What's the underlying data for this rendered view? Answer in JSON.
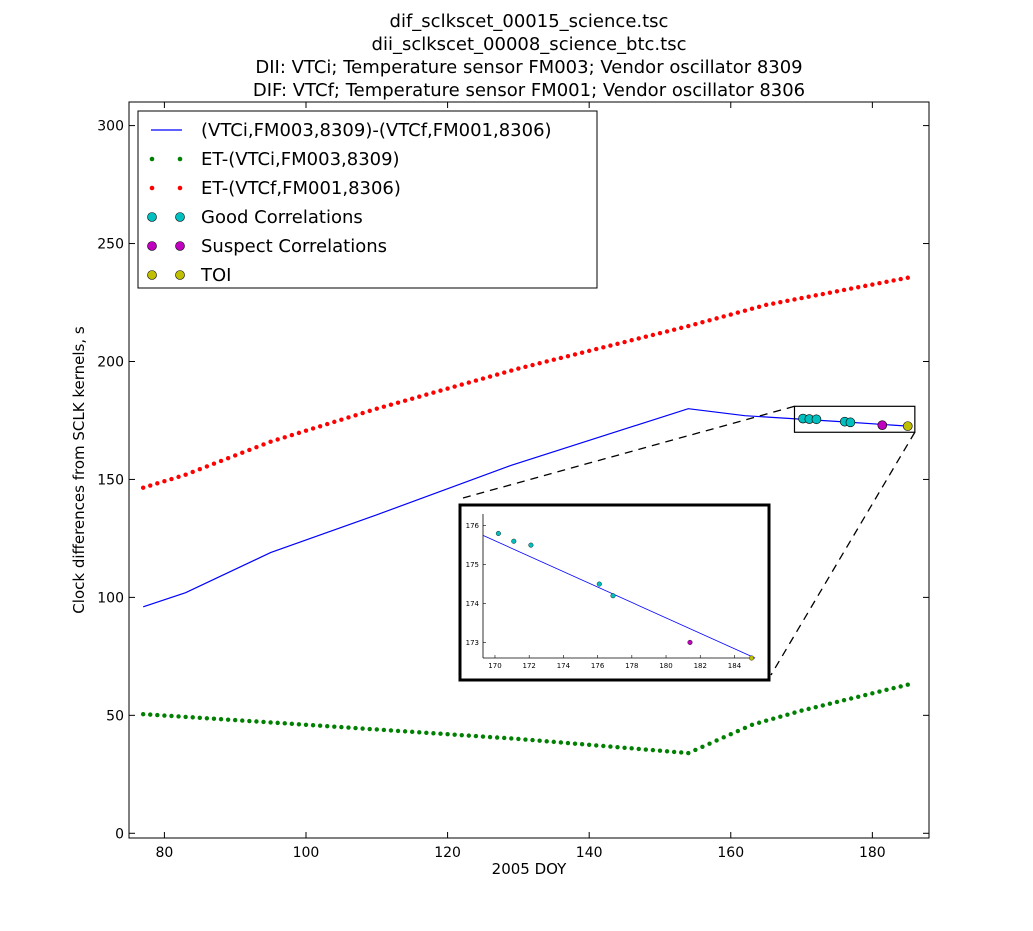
{
  "chart_data": {
    "type": "line",
    "title_lines": [
      "dif_sclkscet_00015_science.tsc",
      "dii_sclkscet_00008_science_btc.tsc",
      "DII:  VTCi; Temperature sensor FM003; Vendor oscillator 8309",
      "DIF:  VTCf; Temperature sensor FM001; Vendor oscillator 8306"
    ],
    "xlabel": "2005 DOY",
    "ylabel": "Clock differences from SCLK kernels, s",
    "xlim": [
      75,
      188
    ],
    "ylim": [
      -2,
      310
    ],
    "xticks": [
      80,
      100,
      120,
      140,
      160,
      180
    ],
    "yticks": [
      0,
      50,
      100,
      150,
      200,
      250,
      300
    ],
    "legend_position": "upper-left",
    "series": [
      {
        "name": "(VTCi,FM003,8309)-(VTCf,FM001,8306)",
        "style": "line",
        "color": "#0000ff",
        "x": [
          77,
          83,
          95,
          110,
          129,
          154,
          162,
          176,
          185
        ],
        "y": [
          96,
          102,
          119,
          135,
          156,
          180,
          177,
          174.4,
          172.6
        ]
      },
      {
        "name": "ET-(VTCi,FM003,8309)",
        "style": "dots",
        "color": "#008000",
        "x": [
          77,
          95,
          110,
          130,
          154,
          163,
          170,
          185
        ],
        "y": [
          50.5,
          47,
          44,
          40,
          34,
          46,
          52,
          63
        ]
      },
      {
        "name": "ET-(VTCf,FM001,8306)",
        "style": "dots",
        "color": "#ff0000",
        "x": [
          77,
          83,
          95,
          110,
          130,
          154,
          165,
          185
        ],
        "y": [
          146.5,
          152,
          166,
          180,
          197,
          215,
          224,
          235.5
        ]
      },
      {
        "name": "Good Correlations",
        "style": "markers",
        "color": "#00bfbf",
        "x": [
          170.2,
          171.1,
          172.1,
          176.1,
          176.9
        ],
        "y": [
          175.8,
          175.6,
          175.5,
          174.5,
          174.2
        ]
      },
      {
        "name": "Suspect Correlations",
        "style": "markers",
        "color": "#bf00bf",
        "x": [
          181.4
        ],
        "y": [
          173.0
        ]
      },
      {
        "name": "TOI",
        "style": "markers",
        "color": "#bfbf00",
        "x": [
          185.0
        ],
        "y": [
          172.6
        ]
      }
    ],
    "zoom_box": {
      "xlim": [
        169,
        186
      ],
      "ylim": [
        170,
        181
      ]
    },
    "inset": {
      "xlim": [
        169.3,
        185.2
      ],
      "ylim": [
        172.6,
        176.3
      ],
      "xticks": [
        170,
        172,
        174,
        176,
        178,
        180,
        182,
        184
      ],
      "yticks": [
        173,
        174,
        175,
        176
      ],
      "line": {
        "x": [
          169.3,
          185.2
        ],
        "y": [
          175.75,
          172.6
        ]
      }
    }
  }
}
